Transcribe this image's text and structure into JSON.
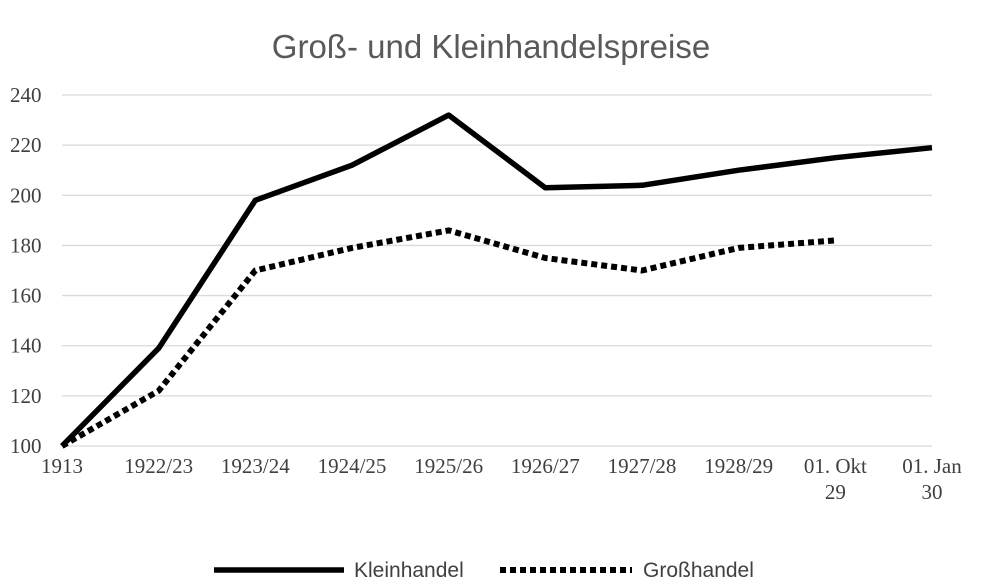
{
  "chart_data": {
    "type": "line",
    "title": "Groß- und Kleinhandelspreise",
    "categories": [
      [
        "1913"
      ],
      [
        "1922/23"
      ],
      [
        "1923/24"
      ],
      [
        "1924/25"
      ],
      [
        "1925/26"
      ],
      [
        "1926/27"
      ],
      [
        "1927/28"
      ],
      [
        "1928/29"
      ],
      [
        "01. Okt",
        "29"
      ],
      [
        "01. Jan",
        "30"
      ]
    ],
    "y_ticks": [
      "100",
      "120",
      "140",
      "160",
      "180",
      "200",
      "220",
      "240"
    ],
    "ylim": [
      100,
      240
    ],
    "grid": true,
    "legend_position": "bottom",
    "series": [
      {
        "name": "Kleinhandel",
        "style": "solid",
        "color": "#000000",
        "values": [
          100,
          139,
          198,
          212,
          232,
          203,
          204,
          210,
          215,
          219
        ]
      },
      {
        "name": "Großhandel",
        "style": "dotted",
        "color": "#000000",
        "values": [
          100,
          122,
          170,
          179,
          186,
          175,
          170,
          179,
          182,
          null
        ]
      }
    ]
  }
}
